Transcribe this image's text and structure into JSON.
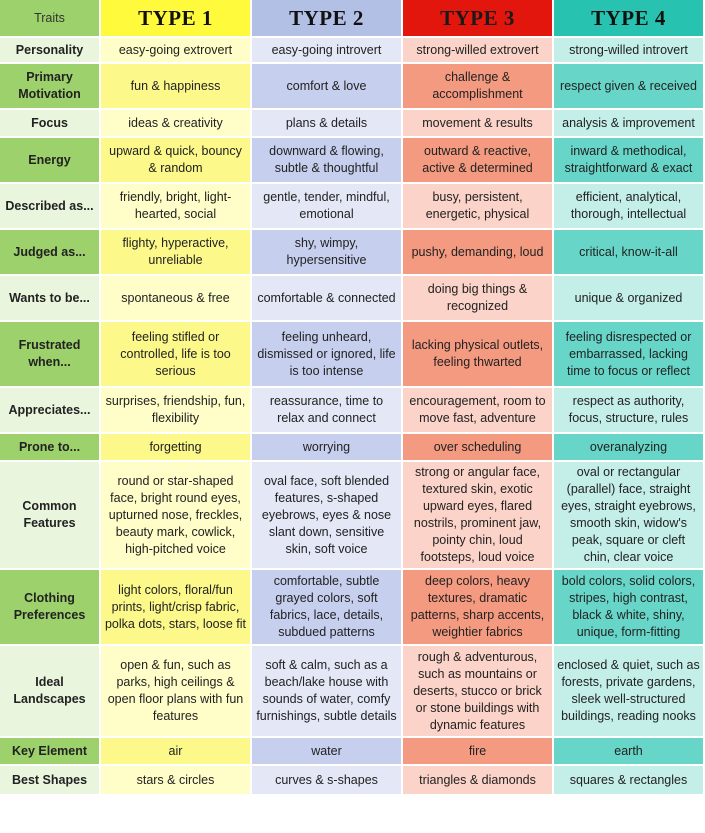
{
  "header": {
    "traits_label": "Traits",
    "types": [
      "TYPE 1",
      "TYPE 2",
      "TYPE 3",
      "TYPE 4"
    ]
  },
  "rows": [
    {
      "label": "Personality",
      "values": [
        "easy-going extrovert",
        "easy-going introvert",
        "strong-willed extrovert",
        "strong-willed introvert"
      ]
    },
    {
      "label": "Primary Motivation",
      "values": [
        "fun & happiness",
        "comfort & love",
        "challenge & accomplishment",
        "respect given & received"
      ]
    },
    {
      "label": "Focus",
      "values": [
        "ideas & creativity",
        "plans & details",
        "movement & results",
        "analysis & improvement"
      ]
    },
    {
      "label": "Energy",
      "values": [
        "upward & quick, bouncy & random",
        "downward & flowing, subtle & thoughtful",
        "outward & reactive, active & determined",
        "inward & methodical, straightforward & exact"
      ]
    },
    {
      "label": "Described as...",
      "values": [
        "friendly, bright, light-hearted, social",
        "gentle, tender, mindful, emotional",
        "busy, persistent, energetic, physical",
        "efficient, analytical, thorough, intellectual"
      ]
    },
    {
      "label": "Judged as...",
      "values": [
        "flighty, hyperactive, unreliable",
        "shy, wimpy, hypersensitive",
        "pushy, demanding, loud",
        "critical, know-it-all"
      ]
    },
    {
      "label": "Wants to be...",
      "values": [
        "spontaneous & free",
        "comfortable & connected",
        "doing big things & recognized",
        "unique & organized"
      ]
    },
    {
      "label": "Frustrated when...",
      "values": [
        "feeling stifled or controlled, life is too serious",
        "feeling unheard, dismissed or ignored, life is too intense",
        "lacking physical outlets, feeling thwarted",
        "feeling disrespected or embarrassed, lacking time to focus or reflect"
      ]
    },
    {
      "label": "Appreciates...",
      "values": [
        "surprises, friendship, fun, flexibility",
        "reassurance, time to relax and connect",
        "encouragement, room to move fast, adventure",
        "respect as authority, focus, structure, rules"
      ]
    },
    {
      "label": "Prone to...",
      "values": [
        "forgetting",
        "worrying",
        "over scheduling",
        "overanalyzing"
      ]
    },
    {
      "label": "Common Features",
      "values": [
        "round or star-shaped face, bright round eyes, upturned nose, freckles, beauty mark, cowlick, high-pitched voice",
        "oval face, soft blended features, s-shaped eyebrows, eyes & nose slant down, sensitive skin, soft voice",
        "strong or angular face, textured skin, exotic upward eyes, flared nostrils, prominent jaw, pointy chin, loud footsteps, loud voice",
        "oval or rectangular (parallel) face, straight eyes, straight eyebrows, smooth skin, widow's peak, square or cleft chin, clear voice"
      ]
    },
    {
      "label": "Clothing Preferences",
      "values": [
        "light colors, floral/fun prints, light/crisp fabric, polka dots, stars, loose fit",
        "comfortable, subtle grayed colors, soft fabrics, lace, details, subdued patterns",
        "deep colors, heavy textures, dramatic patterns, sharp accents, weightier fabrics",
        "bold colors, solid colors, stripes, high contrast, black & white, shiny, unique, form-fitting"
      ]
    },
    {
      "label": "Ideal Landscapes",
      "values": [
        "open & fun, such as parks, high ceilings & open floor plans with fun features",
        "soft & calm, such as a beach/lake house with sounds of water, comfy furnishings, subtle details",
        "rough & adventurous, such as mountains or deserts, stucco or brick or stone buildings with dynamic features",
        "enclosed & quiet, such as forests, private gardens, sleek well-structured buildings, reading nooks"
      ]
    },
    {
      "label": "Key Element",
      "values": [
        "air",
        "water",
        "fire",
        "earth"
      ]
    },
    {
      "label": "Best Shapes",
      "values": [
        "stars & circles",
        "curves & s-shapes",
        "triangles & diamonds",
        "squares & rectangles"
      ]
    }
  ]
}
